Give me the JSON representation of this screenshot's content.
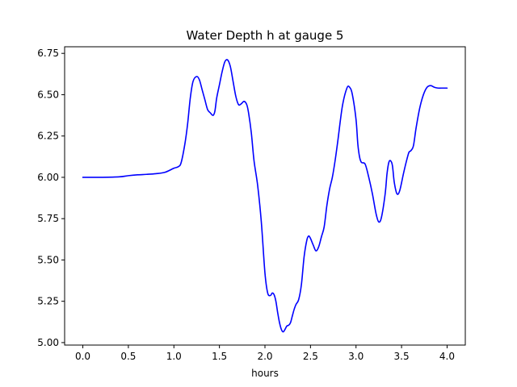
{
  "chart_data": {
    "type": "line",
    "title": "Water Depth h at gauge 5",
    "xlabel": "hours",
    "ylabel": "",
    "xlim": [
      -0.2,
      4.2
    ],
    "ylim": [
      4.985,
      6.79
    ],
    "xticks": [
      0.0,
      0.5,
      1.0,
      1.5,
      2.0,
      2.5,
      3.0,
      3.5,
      4.0
    ],
    "xtick_labels": [
      "0.0",
      "0.5",
      "1.0",
      "1.5",
      "2.0",
      "2.5",
      "3.0",
      "3.5",
      "4.0"
    ],
    "yticks": [
      5.0,
      5.25,
      5.5,
      5.75,
      6.0,
      6.25,
      6.5,
      6.75
    ],
    "ytick_labels": [
      "5.00",
      "5.25",
      "5.50",
      "5.75",
      "6.00",
      "6.25",
      "6.50",
      "6.75"
    ],
    "grid": false,
    "legend": "none",
    "series": [
      {
        "color": "#0000ff",
        "x": [
          0.0,
          0.2,
          0.4,
          0.5,
          0.6,
          0.7,
          0.8,
          0.9,
          1.0,
          1.05,
          1.08,
          1.12,
          1.15,
          1.18,
          1.21,
          1.25,
          1.28,
          1.31,
          1.34,
          1.37,
          1.4,
          1.43,
          1.45,
          1.47,
          1.5,
          1.53,
          1.56,
          1.59,
          1.62,
          1.65,
          1.68,
          1.71,
          1.74,
          1.77,
          1.8,
          1.82,
          1.85,
          1.88,
          1.92,
          1.96,
          2.0,
          2.03,
          2.06,
          2.08,
          2.1,
          2.12,
          2.14,
          2.16,
          2.18,
          2.2,
          2.22,
          2.24,
          2.26,
          2.28,
          2.3,
          2.32,
          2.34,
          2.37,
          2.4,
          2.43,
          2.46,
          2.48,
          2.5,
          2.53,
          2.56,
          2.59,
          2.62,
          2.65,
          2.68,
          2.71,
          2.74,
          2.77,
          2.8,
          2.85,
          2.9,
          2.93,
          2.96,
          3.0,
          3.02,
          3.04,
          3.06,
          3.1,
          3.14,
          3.18,
          3.22,
          3.25,
          3.28,
          3.32,
          3.34,
          3.36,
          3.38,
          3.4,
          3.42,
          3.45,
          3.48,
          3.52,
          3.55,
          3.58,
          3.6,
          3.63,
          3.66,
          3.7,
          3.74,
          3.78,
          3.82,
          3.86,
          3.9,
          3.94,
          3.97,
          4.0
        ],
        "y": [
          6.0,
          6.0,
          6.003,
          6.01,
          6.015,
          6.018,
          6.022,
          6.03,
          6.055,
          6.065,
          6.09,
          6.2,
          6.32,
          6.48,
          6.58,
          6.61,
          6.59,
          6.53,
          6.47,
          6.41,
          6.39,
          6.375,
          6.4,
          6.48,
          6.56,
          6.64,
          6.7,
          6.71,
          6.67,
          6.58,
          6.49,
          6.44,
          6.445,
          6.46,
          6.44,
          6.39,
          6.27,
          6.1,
          5.95,
          5.73,
          5.42,
          5.3,
          5.285,
          5.3,
          5.29,
          5.25,
          5.18,
          5.12,
          5.08,
          5.065,
          5.08,
          5.1,
          5.105,
          5.12,
          5.16,
          5.2,
          5.23,
          5.26,
          5.35,
          5.52,
          5.62,
          5.645,
          5.63,
          5.59,
          5.555,
          5.58,
          5.64,
          5.7,
          5.83,
          5.93,
          6.0,
          6.1,
          6.22,
          6.43,
          6.54,
          6.545,
          6.5,
          6.35,
          6.2,
          6.12,
          6.09,
          6.08,
          6.0,
          5.9,
          5.78,
          5.73,
          5.76,
          5.9,
          6.02,
          6.09,
          6.1,
          6.07,
          5.97,
          5.9,
          5.92,
          6.02,
          6.09,
          6.15,
          6.16,
          6.19,
          6.3,
          6.42,
          6.5,
          6.545,
          6.555,
          6.545,
          6.54,
          6.54,
          6.54,
          6.54
        ]
      }
    ]
  }
}
